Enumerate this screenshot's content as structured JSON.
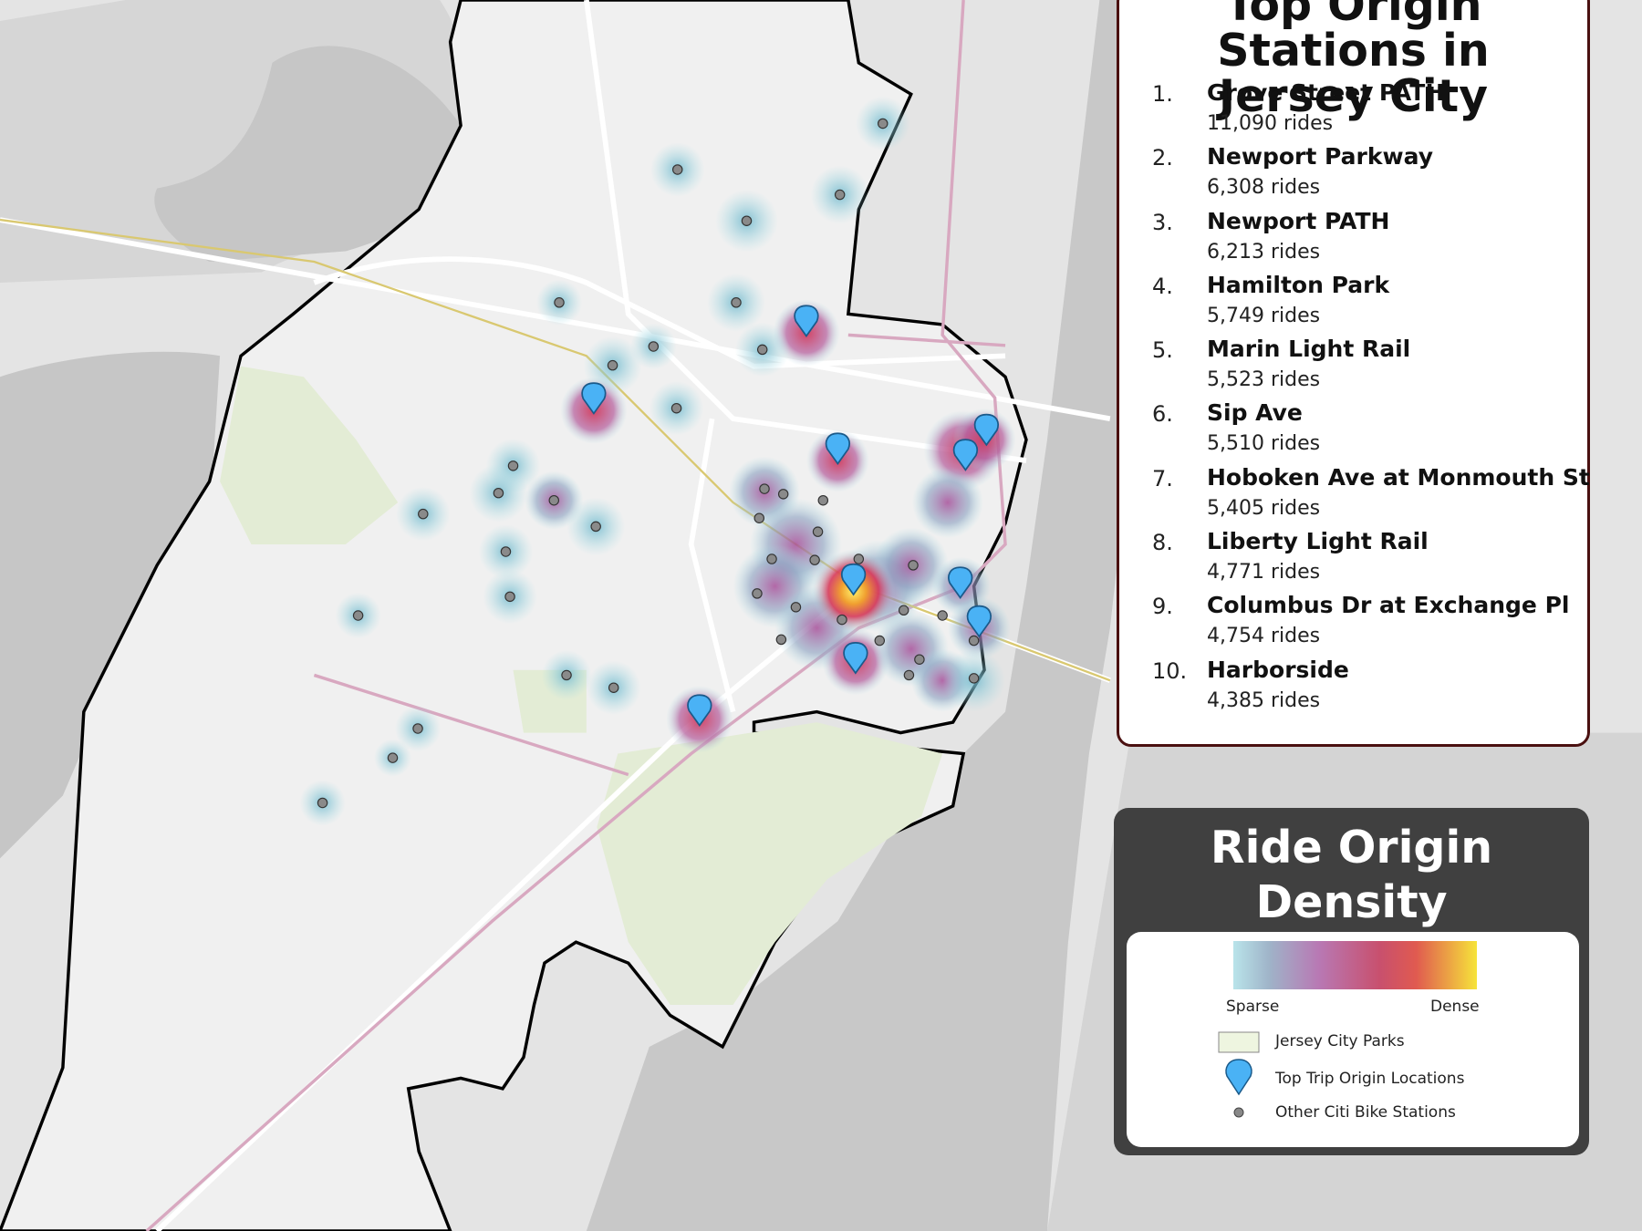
{
  "title": "Top Origin Stations in Jersey City",
  "stations": [
    {
      "rank": "1.",
      "name": "Grove Street PATH",
      "rides": "11,090 rides"
    },
    {
      "rank": "2.",
      "name": "Newport Parkway",
      "rides": "6,308 rides"
    },
    {
      "rank": "3.",
      "name": "Newport PATH",
      "rides": "6,213 rides"
    },
    {
      "rank": "4.",
      "name": "Hamilton Park",
      "rides": "5,749 rides"
    },
    {
      "rank": "5.",
      "name": "Marin Light Rail",
      "rides": "5,523 rides"
    },
    {
      "rank": "6.",
      "name": "Sip Ave",
      "rides": "5,510 rides"
    },
    {
      "rank": "7.",
      "name": "Hoboken Ave at Monmouth St",
      "rides": "5,405 rides"
    },
    {
      "rank": "8.",
      "name": "Liberty Light Rail",
      "rides": "4,771 rides"
    },
    {
      "rank": "9.",
      "name": "Columbus Dr at Exchange Pl",
      "rides": "4,754 rides"
    },
    {
      "rank": "10.",
      "name": "Harborside",
      "rides": "4,385 rides"
    }
  ],
  "legend": {
    "title": "Ride Origin Density",
    "low": "Sparse",
    "high": "Dense",
    "items": [
      "Jersey City Parks",
      "Top Trip Origin Locations",
      "Other Citi Bike Stations"
    ]
  }
}
